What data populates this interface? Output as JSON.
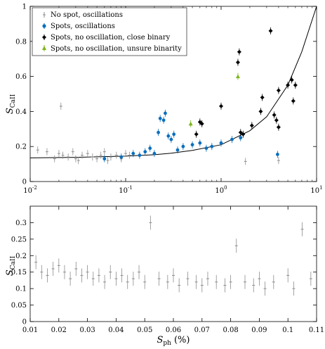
{
  "colors": {
    "no_spot": "#8c8c8c",
    "spots_osc": "#0a6fbd",
    "close_binary": "#000000",
    "unsure": "#7cb518",
    "fit_line": "#000000",
    "axis": "#000000"
  },
  "chart_data": [
    {
      "type": "scatter",
      "title": "",
      "xscale": "log",
      "xlim": [
        0.01,
        10
      ],
      "ylim": [
        0,
        1
      ],
      "xticks": [
        "10^-2",
        "10^-1",
        "10^0",
        "10^1"
      ],
      "yticks": [
        "0",
        "0.2",
        "0.4",
        "0.6",
        "0.8",
        "1"
      ],
      "ylabel": {
        "main": "S",
        "sub": "CaII"
      },
      "xlabel": "",
      "grid": false,
      "legend_position": "top-left",
      "legend": [
        "No spot, oscillations",
        "Spots, oscillations",
        "Spots, no oscillation, close binary",
        "Spots, no oscillation, unsure binarity"
      ],
      "fit_curve": {
        "x": [
          0.01,
          0.03,
          0.1,
          0.2,
          0.3,
          0.5,
          1,
          2,
          3,
          5,
          7,
          10
        ],
        "y": [
          0.135,
          0.138,
          0.145,
          0.153,
          0.162,
          0.178,
          0.21,
          0.29,
          0.37,
          0.55,
          0.74,
          1.0
        ]
      },
      "series": [
        {
          "name": "No spot, oscillations",
          "points": [
            [
              0.012,
              0.18
            ],
            [
              0.015,
              0.17
            ],
            [
              0.018,
              0.13
            ],
            [
              0.02,
              0.16
            ],
            [
              0.021,
              0.43
            ],
            [
              0.022,
              0.15
            ],
            [
              0.025,
              0.14
            ],
            [
              0.028,
              0.17
            ],
            [
              0.03,
              0.13
            ],
            [
              0.032,
              0.12
            ],
            [
              0.035,
              0.15
            ],
            [
              0.04,
              0.16
            ],
            [
              0.045,
              0.14
            ],
            [
              0.05,
              0.13
            ],
            [
              0.055,
              0.15
            ],
            [
              0.06,
              0.17
            ],
            [
              0.065,
              0.12
            ],
            [
              0.07,
              0.14
            ],
            [
              0.08,
              0.15
            ],
            [
              0.09,
              0.13
            ],
            [
              0.1,
              0.16
            ],
            [
              0.11,
              0.15
            ],
            [
              1.8,
              0.115
            ],
            [
              4.0,
              0.12
            ]
          ]
        },
        {
          "name": "Spots, oscillations",
          "points": [
            [
              0.06,
              0.13
            ],
            [
              0.09,
              0.14
            ],
            [
              0.12,
              0.16
            ],
            [
              0.14,
              0.15
            ],
            [
              0.16,
              0.17
            ],
            [
              0.18,
              0.19
            ],
            [
              0.2,
              0.16
            ],
            [
              0.22,
              0.28
            ],
            [
              0.23,
              0.36
            ],
            [
              0.25,
              0.35
            ],
            [
              0.26,
              0.39
            ],
            [
              0.28,
              0.26
            ],
            [
              0.3,
              0.24
            ],
            [
              0.32,
              0.27
            ],
            [
              0.35,
              0.18
            ],
            [
              0.4,
              0.2
            ],
            [
              0.5,
              0.21
            ],
            [
              0.6,
              0.22
            ],
            [
              0.7,
              0.19
            ],
            [
              0.8,
              0.2
            ],
            [
              1.0,
              0.22
            ],
            [
              1.3,
              0.24
            ],
            [
              1.6,
              0.25
            ],
            [
              3.9,
              0.155
            ]
          ]
        },
        {
          "name": "Spots, no oscillation, close binary",
          "points": [
            [
              0.55,
              0.27
            ],
            [
              0.6,
              0.34
            ],
            [
              0.63,
              0.33
            ],
            [
              1.0,
              0.43
            ],
            [
              1.5,
              0.68
            ],
            [
              1.55,
              0.74
            ],
            [
              1.6,
              0.28
            ],
            [
              1.7,
              0.27
            ],
            [
              2.1,
              0.32
            ],
            [
              2.6,
              0.4
            ],
            [
              2.7,
              0.48
            ],
            [
              3.3,
              0.86
            ],
            [
              3.6,
              0.38
            ],
            [
              3.8,
              0.35
            ],
            [
              4.0,
              0.52
            ],
            [
              4.0,
              0.31
            ],
            [
              5.0,
              0.55
            ],
            [
              5.5,
              0.58
            ],
            [
              5.7,
              0.46
            ],
            [
              6.0,
              0.55
            ]
          ]
        },
        {
          "name": "Spots, no oscillation, unsure binarity",
          "points": [
            [
              0.48,
              0.33
            ],
            [
              1.5,
              0.6
            ]
          ]
        }
      ]
    },
    {
      "type": "scatter",
      "title": "",
      "xscale": "linear",
      "xlim": [
        0.01,
        0.11
      ],
      "ylim": [
        0,
        0.35
      ],
      "xticks": [
        "0.01",
        "0.02",
        "0.03",
        "0.04",
        "0.05",
        "0.06",
        "0.07",
        "0.08",
        "0.09",
        "0.1",
        "0.11"
      ],
      "yticks": [
        "0",
        "0.05",
        "0.1",
        "0.15",
        "0.2",
        "0.25",
        "0.3"
      ],
      "ylabel": {
        "main": "S",
        "sub": "CaII"
      },
      "xlabel": {
        "main": "S",
        "sub": "ph",
        "unit": "(%)"
      },
      "grid": false,
      "series": [
        {
          "name": "No spot, oscillations",
          "points": [
            [
              0.012,
              0.18
            ],
            [
              0.014,
              0.15
            ],
            [
              0.016,
              0.14
            ],
            [
              0.018,
              0.16
            ],
            [
              0.02,
              0.17
            ],
            [
              0.022,
              0.15
            ],
            [
              0.024,
              0.13
            ],
            [
              0.026,
              0.16
            ],
            [
              0.028,
              0.14
            ],
            [
              0.03,
              0.15
            ],
            [
              0.032,
              0.13
            ],
            [
              0.034,
              0.14
            ],
            [
              0.036,
              0.12
            ],
            [
              0.038,
              0.15
            ],
            [
              0.04,
              0.13
            ],
            [
              0.042,
              0.14
            ],
            [
              0.044,
              0.12
            ],
            [
              0.046,
              0.13
            ],
            [
              0.048,
              0.15
            ],
            [
              0.05,
              0.12
            ],
            [
              0.052,
              0.3
            ],
            [
              0.055,
              0.13
            ],
            [
              0.058,
              0.12
            ],
            [
              0.06,
              0.14
            ],
            [
              0.062,
              0.11
            ],
            [
              0.065,
              0.13
            ],
            [
              0.068,
              0.12
            ],
            [
              0.07,
              0.11
            ],
            [
              0.072,
              0.13
            ],
            [
              0.075,
              0.12
            ],
            [
              0.078,
              0.11
            ],
            [
              0.08,
              0.12
            ],
            [
              0.082,
              0.23
            ],
            [
              0.085,
              0.12
            ],
            [
              0.088,
              0.11
            ],
            [
              0.09,
              0.13
            ],
            [
              0.092,
              0.1
            ],
            [
              0.095,
              0.12
            ],
            [
              0.1,
              0.14
            ],
            [
              0.102,
              0.1
            ],
            [
              0.105,
              0.28
            ],
            [
              0.108,
              0.13
            ]
          ]
        }
      ]
    }
  ]
}
